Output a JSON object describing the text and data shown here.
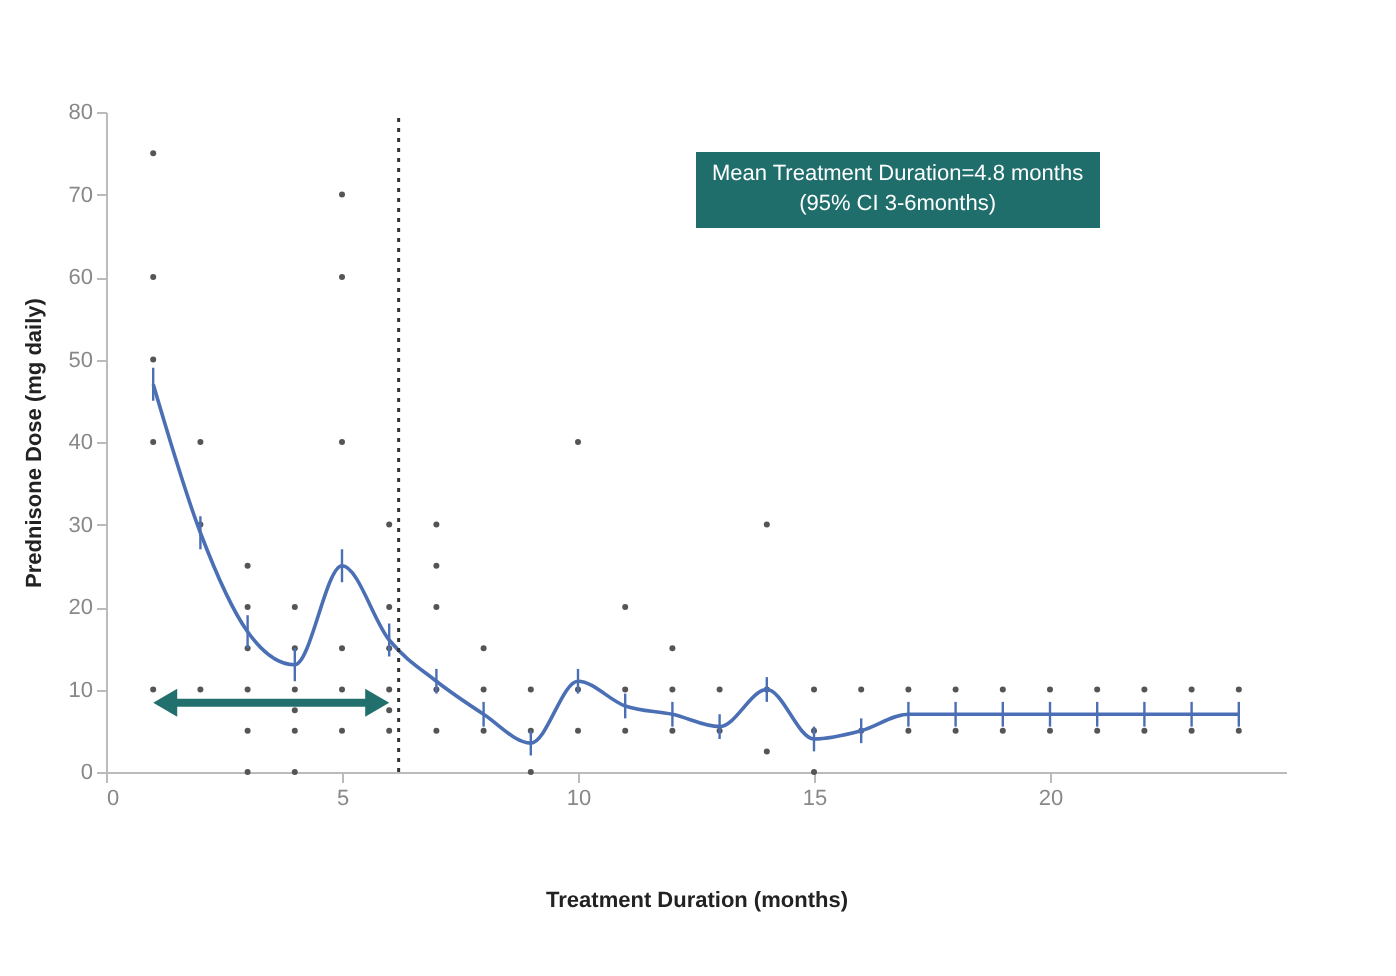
{
  "chart_data": {
    "type": "line",
    "xlabel": "Treatment Duration (months)",
    "ylabel": "Prednisone Dose (mg daily)",
    "annotations": [
      "Mean Treatment Duration=4.8 months",
      "(95% CI 3-6months)"
    ],
    "xlim": [
      0,
      25
    ],
    "xticks": [
      0,
      5,
      10,
      15,
      20
    ],
    "ylim": [
      0,
      80
    ],
    "yticks": [
      0,
      10,
      20,
      30,
      40,
      50,
      60,
      70,
      80
    ],
    "grid": false,
    "ref_lines": [
      {
        "axis": "x",
        "value": 6.2,
        "color": "#333333",
        "line_style": "dotted"
      }
    ],
    "series": [
      {
        "type": "scatter",
        "color": "#555555",
        "marker": "circle",
        "x": [
          1,
          1,
          1,
          1,
          1,
          2,
          2,
          2,
          3,
          3,
          3,
          3,
          3,
          3,
          4,
          4,
          4,
          4,
          4,
          4,
          5,
          5,
          5,
          5,
          5,
          5,
          6,
          6,
          6,
          6,
          6,
          6,
          7,
          7,
          7,
          7,
          7,
          8,
          8,
          8,
          9,
          9,
          9,
          10,
          10,
          10,
          11,
          11,
          11,
          12,
          12,
          12,
          13,
          13,
          14,
          14,
          14,
          15,
          15,
          15,
          16,
          16,
          17,
          17,
          18,
          18,
          19,
          19,
          20,
          20,
          21,
          21,
          22,
          22,
          23,
          23,
          24,
          24
        ],
        "values": [
          75,
          60,
          50,
          40,
          10,
          40,
          30,
          10,
          25,
          20,
          15,
          10,
          5,
          0,
          20,
          15,
          10,
          7.5,
          5,
          0,
          70,
          60,
          40,
          15,
          10,
          5,
          30,
          20,
          15,
          10,
          7.5,
          5,
          30,
          25,
          20,
          10,
          5,
          15,
          10,
          5,
          10,
          5,
          0,
          40,
          10,
          5,
          20,
          10,
          5,
          15,
          10,
          5,
          10,
          5,
          30,
          10,
          2.5,
          10,
          5,
          0,
          10,
          5,
          10,
          5,
          10,
          5,
          10,
          5,
          10,
          5,
          10,
          5,
          10,
          5,
          10,
          5,
          10,
          5
        ]
      },
      {
        "type": "line",
        "color": "#4a6fb5",
        "x": [
          1,
          2,
          3,
          4,
          5,
          6,
          7,
          8,
          9,
          10,
          11,
          12,
          13,
          14,
          15,
          16,
          17,
          18,
          19,
          20,
          21,
          22,
          23,
          24
        ],
        "values": [
          47,
          29,
          17,
          13,
          25,
          16,
          11,
          7,
          3.5,
          11,
          8,
          7,
          5.5,
          10,
          4,
          5,
          7,
          7,
          7,
          7,
          7,
          7,
          7,
          7
        ],
        "errors": [
          2,
          2,
          2,
          2,
          2,
          2,
          1.5,
          1.5,
          1.5,
          1.5,
          1.5,
          1.5,
          1.5,
          1.5,
          1.5,
          1.5,
          1.5,
          1.5,
          1.5,
          1.5,
          1.5,
          1.5,
          1.5,
          1.5
        ]
      }
    ]
  }
}
